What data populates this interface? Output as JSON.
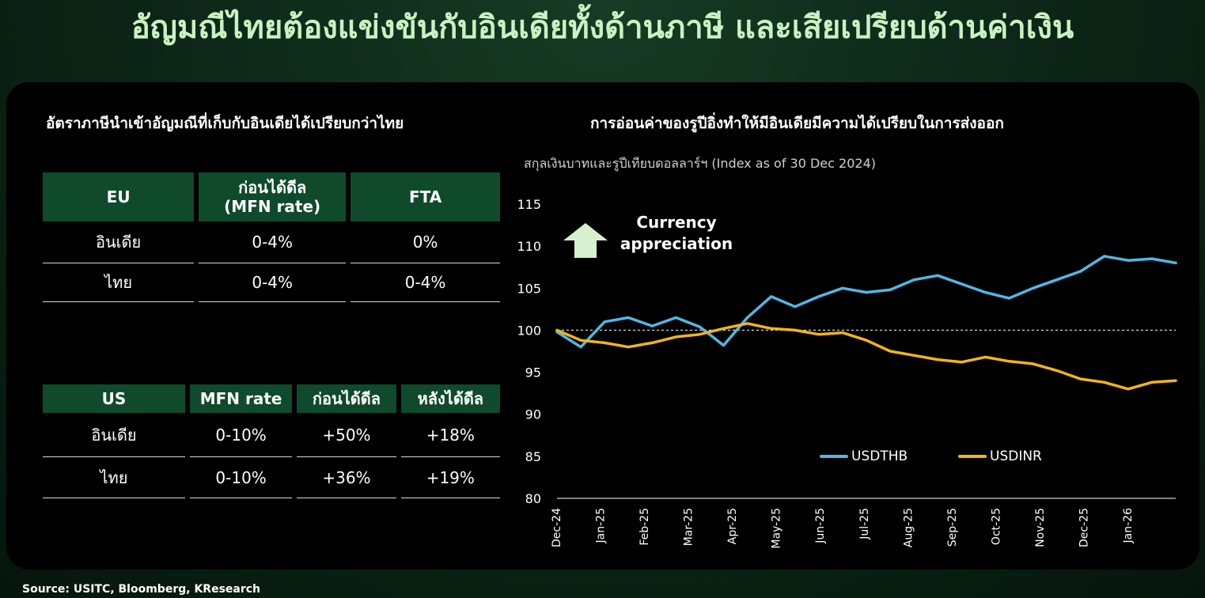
{
  "page": {
    "title": "อัญมณีไทยต้องแข่งขันกับอินเดียทั้งด้านภาษี และเสียเปรียบด้านค่าเงิน",
    "source": "Source: USITC, Bloomberg, KResearch"
  },
  "left": {
    "title": "อัตราภาษีนำเข้าอัญมณีที่เก็บกับอินเดียได้เปรียบกว่าไทย",
    "eu_table": {
      "headers": [
        "EU",
        "ก่อนได้ดีล\n(MFN rate)",
        "FTA"
      ],
      "header_line1": "ก่อนได้ดีล",
      "header_line2": "(MFN rate)",
      "rows": [
        [
          "อินเดีย",
          "0-4%",
          "0%"
        ],
        [
          "ไทย",
          "0-4%",
          "0-4%"
        ]
      ]
    },
    "us_table": {
      "headers": [
        "US",
        "MFN rate",
        "ก่อนได้ดีล",
        "หลังได้ดีล"
      ],
      "rows": [
        [
          "อินเดีย",
          "0-10%",
          "+50%",
          "+18%"
        ],
        [
          "ไทย",
          "0-10%",
          "+36%",
          "+19%"
        ]
      ]
    }
  },
  "chart": {
    "title": "การอ่อนค่าของรูปีอิ่งทำให้มีอินเดียมีความได้เปรียบในการส่งออก",
    "annotation_line1": "Currency",
    "annotation_line2": "appreciation"
  },
  "chart_data": {
    "type": "line",
    "title": "การอ่อนค่าของรูปีอิ่งทำให้มีอินเดียมีความได้เปรียบในการส่งออก",
    "subtitle": "สกุลเงินบาทและรูปีเทียบดอลลาร์ฯ (Index as of 30 Dec 2024)",
    "x_labels": [
      "Dec-24",
      "Jan-25",
      "Feb-25",
      "Mar-25",
      "Apr-25",
      "May-25",
      "Jun-25",
      "Jul-25",
      "Aug-25",
      "Sep-25",
      "Oct-25",
      "Nov-25",
      "Dec-25",
      "Jan-26"
    ],
    "ylim": [
      80,
      115
    ],
    "yticks": [
      80,
      85,
      90,
      95,
      100,
      105,
      110,
      115
    ],
    "reference_line": 100,
    "legend_position": "bottom-right",
    "series": [
      {
        "name": "USDTHB",
        "color": "#4fb8e6",
        "values": [
          99.8,
          98.0,
          101.0,
          101.5,
          100.5,
          101.5,
          100.4,
          98.2,
          101.5,
          104.0,
          102.8,
          104.0,
          105.0,
          104.5,
          104.8,
          106.0,
          106.5,
          105.5,
          104.5,
          103.8,
          105.0,
          106.0,
          107.0,
          108.8,
          108.3,
          108.5,
          108.0
        ]
      },
      {
        "name": "USDINR",
        "color": "#f2b419",
        "values": [
          100.0,
          98.8,
          98.5,
          98.0,
          98.5,
          99.2,
          99.5,
          100.2,
          100.8,
          100.2,
          100.0,
          99.5,
          99.7,
          98.8,
          97.5,
          97.0,
          96.5,
          96.2,
          96.8,
          96.3,
          96.0,
          95.2,
          94.2,
          93.8,
          93.0,
          93.8,
          94.0
        ]
      }
    ]
  }
}
